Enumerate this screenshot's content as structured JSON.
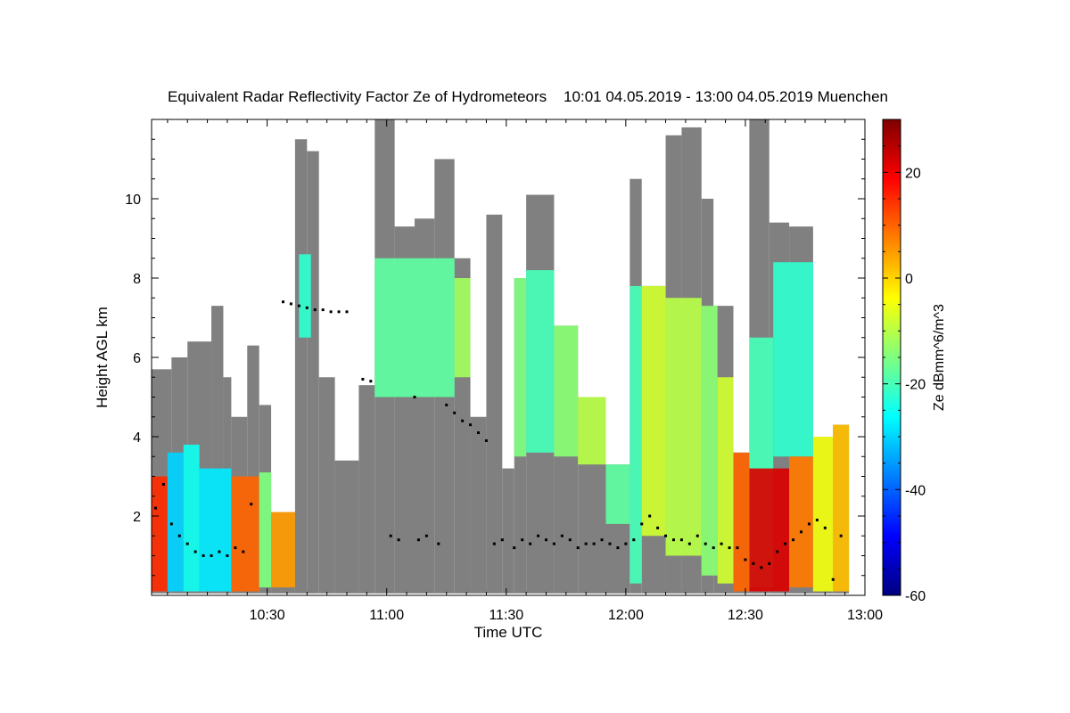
{
  "chart_data": {
    "type": "heatmap",
    "title": "Equivalent Radar Reflectivity Factor Ze of Hydrometeors    10:01 04.05.2019 - 13:00 04.05.2019 Muenchen",
    "xlabel": "Time UTC",
    "ylabel": "Height AGL km",
    "xlim": [
      "10:01",
      "13:00"
    ],
    "ylim": [
      0,
      12
    ],
    "x_ticks": [
      "10:30",
      "11:00",
      "11:30",
      "12:00",
      "12:30",
      "13:00"
    ],
    "x_tick_minutes": [
      30,
      60,
      90,
      120,
      150,
      180
    ],
    "y_ticks": [
      "2",
      "4",
      "6",
      "8",
      "10"
    ],
    "y_tick_values": [
      2,
      4,
      6,
      8,
      10
    ],
    "colorbar": {
      "label": "Ze dBmm^6/m^3",
      "range": [
        -60,
        30
      ],
      "ticks": [
        "20",
        "0",
        "-20",
        "-40",
        "-60"
      ],
      "tick_values": [
        20,
        0,
        -20,
        -40,
        -60
      ],
      "colormap": [
        "#00007f",
        "#0000ff",
        "#007fff",
        "#00ffff",
        "#7fff7f",
        "#ffff00",
        "#ff7f00",
        "#ff0000",
        "#7f0000"
      ]
    },
    "colors": {
      "no_echo_gray": "#808080"
    },
    "echo_columns": [
      {
        "t0": 0,
        "t1": 5,
        "top": 5.7,
        "base": 0.05
      },
      {
        "t0": 5,
        "t1": 9,
        "top": 6.0,
        "base": 0.05
      },
      {
        "t0": 9,
        "t1": 15,
        "top": 6.4,
        "base": 0.05
      },
      {
        "t0": 15,
        "t1": 18,
        "top": 7.3,
        "base": 0.05
      },
      {
        "t0": 18,
        "t1": 20,
        "top": 5.5,
        "base": 0.05
      },
      {
        "t0": 20,
        "t1": 24,
        "top": 4.5,
        "base": 0.05
      },
      {
        "t0": 24,
        "t1": 27,
        "top": 6.3,
        "base": 0.05
      },
      {
        "t0": 27,
        "t1": 30,
        "top": 4.8,
        "base": 0.05
      },
      {
        "t0": 30,
        "t1": 36,
        "top": 2.1,
        "base": 0.05
      },
      {
        "t0": 36,
        "t1": 39,
        "top": 11.5,
        "base": 0.05
      },
      {
        "t0": 39,
        "t1": 42,
        "top": 11.2,
        "base": 0.05
      },
      {
        "t0": 42,
        "t1": 46,
        "top": 5.5,
        "base": 0.05
      },
      {
        "t0": 46,
        "t1": 52,
        "top": 3.4,
        "base": 0.05
      },
      {
        "t0": 52,
        "t1": 56,
        "top": 5.3,
        "base": 0.05
      },
      {
        "t0": 56,
        "t1": 61,
        "top": 12.0,
        "base": 0.05
      },
      {
        "t0": 61,
        "t1": 66,
        "top": 9.3,
        "base": 0.05
      },
      {
        "t0": 66,
        "t1": 71,
        "top": 9.5,
        "base": 0.05
      },
      {
        "t0": 71,
        "t1": 76,
        "top": 11.0,
        "base": 0.05
      },
      {
        "t0": 76,
        "t1": 80,
        "top": 8.5,
        "base": 0.05
      },
      {
        "t0": 80,
        "t1": 84,
        "top": 4.5,
        "base": 0.05
      },
      {
        "t0": 84,
        "t1": 88,
        "top": 9.6,
        "base": 0.05
      },
      {
        "t0": 88,
        "t1": 91,
        "top": 3.2,
        "base": 0.05
      },
      {
        "t0": 91,
        "t1": 94,
        "top": 8.0,
        "base": 0.05
      },
      {
        "t0": 94,
        "t1": 101,
        "top": 10.1,
        "base": 0.05
      },
      {
        "t0": 101,
        "t1": 107,
        "top": 6.8,
        "base": 0.05
      },
      {
        "t0": 107,
        "t1": 114,
        "top": 5.0,
        "base": 0.05
      },
      {
        "t0": 114,
        "t1": 120,
        "top": 3.3,
        "base": 0.05
      },
      {
        "t0": 120,
        "t1": 123,
        "top": 10.5,
        "base": 0.05
      },
      {
        "t0": 123,
        "t1": 129,
        "top": 7.8,
        "base": 0.05
      },
      {
        "t0": 129,
        "t1": 133,
        "top": 11.6,
        "base": 0.05
      },
      {
        "t0": 133,
        "t1": 138,
        "top": 11.8,
        "base": 0.05
      },
      {
        "t0": 138,
        "t1": 141,
        "top": 10.0,
        "base": 0.05
      },
      {
        "t0": 141,
        "t1": 146,
        "top": 7.3,
        "base": 0.05
      },
      {
        "t0": 146,
        "t1": 150,
        "top": 3.6,
        "base": 0.05
      },
      {
        "t0": 150,
        "t1": 155,
        "top": 12.0,
        "base": 0.05
      },
      {
        "t0": 155,
        "t1": 160,
        "top": 9.4,
        "base": 0.05
      },
      {
        "t0": 160,
        "t1": 166,
        "top": 9.3,
        "base": 0.05
      },
      {
        "t0": 166,
        "t1": 171,
        "top": 4.0,
        "base": 0.05
      },
      {
        "t0": 171,
        "t1": 175,
        "top": 4.3,
        "base": 0.05
      }
    ],
    "reflectivity_patches": [
      {
        "t0": 0,
        "t1": 4,
        "top": 3.0,
        "base": 0.1,
        "ze": 15
      },
      {
        "t0": 4,
        "t1": 8,
        "top": 3.6,
        "base": 0.1,
        "ze": -30
      },
      {
        "t0": 8,
        "t1": 12,
        "top": 3.8,
        "base": 0.1,
        "ze": -25
      },
      {
        "t0": 12,
        "t1": 20,
        "top": 3.2,
        "base": 0.1,
        "ze": -28
      },
      {
        "t0": 20,
        "t1": 27,
        "top": 3.0,
        "base": 0.1,
        "ze": 10
      },
      {
        "t0": 27,
        "t1": 30,
        "top": 3.1,
        "base": 0.2,
        "ze": -15
      },
      {
        "t0": 30,
        "t1": 36,
        "top": 2.1,
        "base": 0.2,
        "ze": 5
      },
      {
        "t0": 37,
        "t1": 40,
        "top": 8.6,
        "base": 6.5,
        "ze": -22
      },
      {
        "t0": 56,
        "t1": 76,
        "top": 8.5,
        "base": 5.0,
        "ze": -18
      },
      {
        "t0": 76,
        "t1": 80,
        "top": 8.0,
        "base": 5.5,
        "ze": -12
      },
      {
        "t0": 91,
        "t1": 94,
        "top": 8.0,
        "base": 3.5,
        "ze": -15
      },
      {
        "t0": 94,
        "t1": 101,
        "top": 8.2,
        "base": 3.6,
        "ze": -20
      },
      {
        "t0": 101,
        "t1": 107,
        "top": 6.8,
        "base": 3.5,
        "ze": -14
      },
      {
        "t0": 107,
        "t1": 114,
        "top": 5.0,
        "base": 3.3,
        "ze": -10
      },
      {
        "t0": 114,
        "t1": 120,
        "top": 3.3,
        "base": 1.8,
        "ze": -18
      },
      {
        "t0": 120,
        "t1": 123,
        "top": 7.8,
        "base": 0.3,
        "ze": -20
      },
      {
        "t0": 123,
        "t1": 129,
        "top": 7.8,
        "base": 1.5,
        "ze": -8
      },
      {
        "t0": 129,
        "t1": 138,
        "top": 7.5,
        "base": 1.0,
        "ze": -10
      },
      {
        "t0": 138,
        "t1": 142,
        "top": 7.3,
        "base": 0.5,
        "ze": -14
      },
      {
        "t0": 142,
        "t1": 146,
        "top": 5.5,
        "base": 0.3,
        "ze": -8
      },
      {
        "t0": 146,
        "t1": 150,
        "top": 3.6,
        "base": 0.1,
        "ze": 10
      },
      {
        "t0": 150,
        "t1": 156,
        "top": 6.5,
        "base": 0.2,
        "ze": -20
      },
      {
        "t0": 156,
        "t1": 166,
        "top": 8.4,
        "base": 3.5,
        "ze": -22
      },
      {
        "t0": 150,
        "t1": 160,
        "top": 3.2,
        "base": 0.1,
        "ze": 22
      },
      {
        "t0": 160,
        "t1": 166,
        "top": 3.5,
        "base": 0.2,
        "ze": 8
      },
      {
        "t0": 166,
        "t1": 171,
        "top": 4.0,
        "base": 0.1,
        "ze": -5
      },
      {
        "t0": 171,
        "t1": 175,
        "top": 4.3,
        "base": 0.1,
        "ze": 2
      }
    ],
    "cloud_base_points": [
      {
        "t": 1,
        "h": 2.2
      },
      {
        "t": 3,
        "h": 2.8
      },
      {
        "t": 5,
        "h": 1.8
      },
      {
        "t": 7,
        "h": 1.5
      },
      {
        "t": 9,
        "h": 1.3
      },
      {
        "t": 11,
        "h": 1.1
      },
      {
        "t": 13,
        "h": 1.0
      },
      {
        "t": 15,
        "h": 1.0
      },
      {
        "t": 17,
        "h": 1.1
      },
      {
        "t": 19,
        "h": 1.0
      },
      {
        "t": 21,
        "h": 1.2
      },
      {
        "t": 23,
        "h": 1.1
      },
      {
        "t": 25,
        "h": 2.3
      },
      {
        "t": 33,
        "h": 7.4
      },
      {
        "t": 35,
        "h": 7.35
      },
      {
        "t": 37,
        "h": 7.3
      },
      {
        "t": 39,
        "h": 7.25
      },
      {
        "t": 41,
        "h": 7.2
      },
      {
        "t": 43,
        "h": 7.2
      },
      {
        "t": 45,
        "h": 7.15
      },
      {
        "t": 47,
        "h": 7.15
      },
      {
        "t": 49,
        "h": 7.15
      },
      {
        "t": 53,
        "h": 5.45
      },
      {
        "t": 55,
        "h": 5.4
      },
      {
        "t": 60,
        "h": 1.5
      },
      {
        "t": 62,
        "h": 1.4
      },
      {
        "t": 66,
        "h": 5.0
      },
      {
        "t": 67,
        "h": 1.4
      },
      {
        "t": 69,
        "h": 1.5
      },
      {
        "t": 72,
        "h": 1.3
      },
      {
        "t": 74,
        "h": 4.8
      },
      {
        "t": 76,
        "h": 4.6
      },
      {
        "t": 78,
        "h": 4.4
      },
      {
        "t": 80,
        "h": 4.3
      },
      {
        "t": 82,
        "h": 4.1
      },
      {
        "t": 84,
        "h": 3.9
      },
      {
        "t": 86,
        "h": 1.3
      },
      {
        "t": 88,
        "h": 1.4
      },
      {
        "t": 91,
        "h": 1.2
      },
      {
        "t": 93,
        "h": 1.4
      },
      {
        "t": 95,
        "h": 1.3
      },
      {
        "t": 97,
        "h": 1.5
      },
      {
        "t": 99,
        "h": 1.4
      },
      {
        "t": 101,
        "h": 1.3
      },
      {
        "t": 103,
        "h": 1.5
      },
      {
        "t": 105,
        "h": 1.4
      },
      {
        "t": 107,
        "h": 1.2
      },
      {
        "t": 109,
        "h": 1.3
      },
      {
        "t": 111,
        "h": 1.3
      },
      {
        "t": 113,
        "h": 1.4
      },
      {
        "t": 115,
        "h": 1.3
      },
      {
        "t": 117,
        "h": 1.2
      },
      {
        "t": 119,
        "h": 1.3
      },
      {
        "t": 121,
        "h": 1.4
      },
      {
        "t": 123,
        "h": 1.8
      },
      {
        "t": 125,
        "h": 2.0
      },
      {
        "t": 127,
        "h": 1.7
      },
      {
        "t": 129,
        "h": 1.5
      },
      {
        "t": 131,
        "h": 1.4
      },
      {
        "t": 133,
        "h": 1.4
      },
      {
        "t": 135,
        "h": 1.3
      },
      {
        "t": 137,
        "h": 1.5
      },
      {
        "t": 139,
        "h": 1.3
      },
      {
        "t": 141,
        "h": 1.2
      },
      {
        "t": 143,
        "h": 1.3
      },
      {
        "t": 145,
        "h": 1.2
      },
      {
        "t": 147,
        "h": 1.2
      },
      {
        "t": 149,
        "h": 0.9
      },
      {
        "t": 151,
        "h": 0.8
      },
      {
        "t": 153,
        "h": 0.7
      },
      {
        "t": 155,
        "h": 0.8
      },
      {
        "t": 157,
        "h": 1.1
      },
      {
        "t": 159,
        "h": 1.3
      },
      {
        "t": 161,
        "h": 1.4
      },
      {
        "t": 163,
        "h": 1.6
      },
      {
        "t": 165,
        "h": 1.8
      },
      {
        "t": 167,
        "h": 1.9
      },
      {
        "t": 169,
        "h": 1.7
      },
      {
        "t": 171,
        "h": 0.4
      },
      {
        "t": 173,
        "h": 1.5
      }
    ]
  }
}
